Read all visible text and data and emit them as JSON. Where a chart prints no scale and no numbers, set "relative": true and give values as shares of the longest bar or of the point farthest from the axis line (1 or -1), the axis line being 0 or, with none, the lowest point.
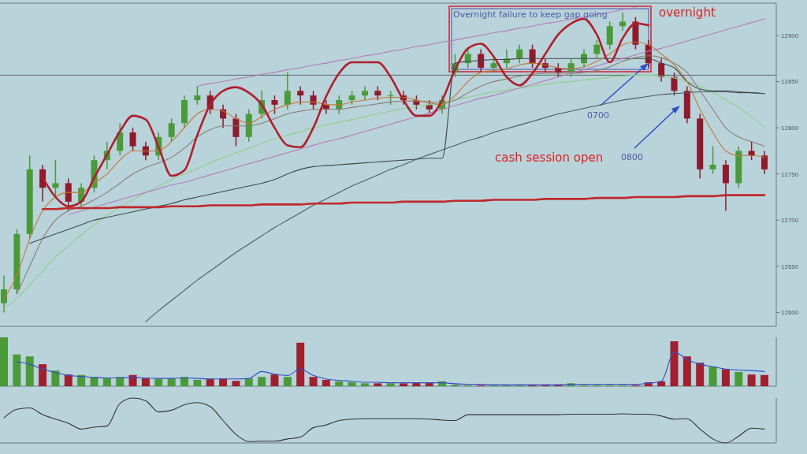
{
  "chart_data": [
    {
      "type": "candlestick",
      "categories": [
        null,
        null,
        null,
        null,
        null,
        null,
        null,
        null,
        null,
        null,
        null,
        null,
        null,
        null,
        null,
        null,
        null,
        null,
        null,
        null,
        null,
        null,
        null,
        null,
        null,
        null,
        null,
        null,
        null,
        null,
        null,
        null,
        null,
        null,
        null,
        null,
        null,
        null,
        null,
        null,
        null,
        null,
        null,
        null,
        null,
        null,
        null,
        null,
        null,
        null,
        null,
        null,
        null,
        null,
        null,
        null,
        null,
        null,
        null,
        null
      ],
      "ohlc": [
        [
          12610,
          12640,
          12600,
          12625
        ],
        [
          12625,
          12690,
          12620,
          12685
        ],
        [
          12685,
          12770,
          12680,
          12755
        ],
        [
          12755,
          12760,
          12720,
          12735
        ],
        [
          12735,
          12765,
          12725,
          12740
        ],
        [
          12740,
          12745,
          12710,
          12720
        ],
        [
          12720,
          12740,
          12715,
          12735
        ],
        [
          12735,
          12770,
          12730,
          12765
        ],
        [
          12765,
          12785,
          12755,
          12775
        ],
        [
          12775,
          12805,
          12770,
          12795
        ],
        [
          12795,
          12800,
          12775,
          12780
        ],
        [
          12780,
          12785,
          12765,
          12770
        ],
        [
          12770,
          12795,
          12765,
          12790
        ],
        [
          12790,
          12810,
          12785,
          12805
        ],
        [
          12805,
          12835,
          12800,
          12830
        ],
        [
          12830,
          12845,
          12825,
          12835
        ],
        [
          12835,
          12840,
          12815,
          12820
        ],
        [
          12820,
          12825,
          12800,
          12810
        ],
        [
          12810,
          12815,
          12780,
          12790
        ],
        [
          12790,
          12820,
          12785,
          12815
        ],
        [
          12815,
          12840,
          12810,
          12830
        ],
        [
          12830,
          12835,
          12815,
          12825
        ],
        [
          12825,
          12860,
          12820,
          12840
        ],
        [
          12840,
          12845,
          12825,
          12835
        ],
        [
          12835,
          12840,
          12820,
          12825
        ],
        [
          12825,
          12830,
          12815,
          12820
        ],
        [
          12820,
          12835,
          12815,
          12830
        ],
        [
          12830,
          12840,
          12825,
          12835
        ],
        [
          12835,
          12845,
          12830,
          12840
        ],
        [
          12840,
          12845,
          12830,
          12835
        ],
        [
          12835,
          12840,
          12825,
          12835
        ],
        [
          12835,
          12840,
          12825,
          12830
        ],
        [
          12830,
          12835,
          12820,
          12825
        ],
        [
          12825,
          12830,
          12815,
          12820
        ],
        [
          12820,
          12835,
          12815,
          12830
        ],
        [
          12860,
          12880,
          12855,
          12870
        ],
        [
          12870,
          12885,
          12865,
          12880
        ],
        [
          12880,
          12885,
          12860,
          12865
        ],
        [
          12865,
          12875,
          12860,
          12870
        ],
        [
          12870,
          12885,
          12865,
          12875
        ],
        [
          12875,
          12890,
          12870,
          12885
        ],
        [
          12885,
          12890,
          12865,
          12870
        ],
        [
          12870,
          12875,
          12860,
          12865
        ],
        [
          12865,
          12870,
          12855,
          12860
        ],
        [
          12860,
          12875,
          12855,
          12870
        ],
        [
          12870,
          12885,
          12865,
          12880
        ],
        [
          12880,
          12895,
          12875,
          12890
        ],
        [
          12890,
          12915,
          12885,
          12910
        ],
        [
          12910,
          12925,
          12905,
          12915
        ],
        [
          12915,
          12920,
          12885,
          12890
        ],
        [
          12890,
          12895,
          12865,
          12870
        ],
        [
          12870,
          12875,
          12850,
          12855
        ],
        [
          12855,
          12860,
          12835,
          12840
        ],
        [
          12840,
          12845,
          12805,
          12810
        ],
        [
          12810,
          12815,
          12745,
          12755
        ],
        [
          12755,
          12780,
          12750,
          12760
        ],
        [
          12760,
          12765,
          12710,
          12740
        ],
        [
          12740,
          12780,
          12735,
          12775
        ],
        [
          12775,
          12785,
          12765,
          12770
        ],
        [
          12770,
          12775,
          12750,
          12755
        ]
      ],
      "series": [
        {
          "type": "line",
          "color": "#8fcf8a",
          "values": [
            12605,
            12615,
            12630,
            12645,
            12660,
            12672,
            12684,
            12695,
            12705,
            12714,
            12722,
            12730,
            12737,
            12744,
            12750,
            12756,
            12762,
            12768,
            12773,
            12778,
            12783,
            12788,
            12792,
            12796,
            12800,
            12803,
            12806,
            12809,
            12812,
            12815,
            12818,
            12821,
            12823,
            12825,
            12827,
            12830,
            12833,
            12836,
            12839,
            12841,
            12843,
            12845,
            12847,
            12849,
            12850,
            12852,
            12853,
            12855,
            12856,
            12857,
            12857,
            12856,
            12854,
            12850,
            12845,
            12838,
            12830,
            12822,
            12812,
            12800
          ]
        },
        {
          "type": "line",
          "color": "#4d5c60",
          "values": [
            null,
            null,
            null,
            null,
            null,
            null,
            null,
            null,
            null,
            null,
            null,
            12590,
            12602,
            12613,
            12624,
            12635,
            12645,
            12655,
            12665,
            12674,
            12683,
            12692,
            12700,
            12708,
            12716,
            12723,
            12730,
            12737,
            12743,
            12749,
            12755,
            12760,
            12766,
            12771,
            12776,
            12781,
            12786,
            12790,
            12795,
            12799,
            12803,
            12807,
            12811,
            12815,
            12818,
            12821,
            12824,
            12827,
            12830,
            12832,
            12834,
            12836,
            12837,
            12838,
            12839,
            12839,
            12839,
            12838,
            12838,
            12837
          ]
        },
        {
          "type": "line",
          "color": "#3f4a4c",
          "values": [
            null,
            null,
            12675,
            12680,
            12685,
            12690,
            12695,
            12700,
            12703,
            12706,
            12709,
            12712,
            12715,
            12718,
            12722,
            12725,
            12728,
            12731,
            12734,
            12737,
            12740,
            12744,
            12750,
            12755,
            12758,
            12759,
            12760,
            12761,
            12762,
            12763,
            12764,
            12765,
            12766,
            12767,
            12767,
            12870,
            12872,
            12873,
            12874,
            12874,
            12875,
            12875,
            12875,
            12875,
            12875,
            12875,
            12875,
            12875,
            12875,
            12875,
            12875,
            12870,
            12865,
            12850,
            12842,
            12840,
            12840,
            12839,
            12838,
            12837
          ]
        },
        {
          "type": "line",
          "color": "#8a7b70",
          "values": [
            null,
            12620,
            12650,
            12680,
            12700,
            12710,
            12715,
            12722,
            12730,
            12740,
            12750,
            12757,
            12762,
            12768,
            12778,
            12790,
            12798,
            12802,
            12802,
            12802,
            12805,
            12810,
            12815,
            12818,
            12820,
            12820,
            12820,
            12822,
            12824,
            12826,
            12828,
            12829,
            12829,
            12828,
            12827,
            12830,
            12838,
            12845,
            12850,
            12853,
            12856,
            12858,
            12859,
            12859,
            12859,
            12860,
            12862,
            12866,
            12872,
            12876,
            12878,
            12876,
            12870,
            12860,
            12840,
            12820,
            12800,
            12790,
            12785,
            12780
          ]
        },
        {
          "type": "line",
          "color": "#c07a3a",
          "values": [
            12615,
            12640,
            12680,
            12710,
            12725,
            12730,
            12730,
            12740,
            12750,
            12765,
            12775,
            12775,
            12775,
            12785,
            12800,
            12815,
            12820,
            12818,
            12810,
            12805,
            12812,
            12820,
            12825,
            12828,
            12828,
            12825,
            12825,
            12828,
            12830,
            12832,
            12833,
            12833,
            12830,
            12827,
            12825,
            12835,
            12850,
            12860,
            12862,
            12864,
            12868,
            12870,
            12868,
            12865,
            12864,
            12866,
            12872,
            12880,
            12890,
            12893,
            12890,
            12880,
            12868,
            12850,
            12820,
            12795,
            12775,
            12770,
            12770,
            12768
          ]
        },
        {
          "type": "line",
          "color": "#b47cbc",
          "values": [
            null,
            null,
            null,
            null,
            null,
            null,
            null,
            null,
            null,
            null,
            null,
            null,
            null,
            null,
            null,
            12845,
            12848,
            12850,
            12853,
            12855,
            12858,
            12860,
            12863,
            12865,
            12868,
            12870,
            12873,
            12875,
            12878,
            12880,
            12883,
            12885,
            12888,
            12890,
            12893,
            12895,
            12898,
            12900,
            12903,
            12905,
            12908,
            12910,
            12913,
            12915,
            12918,
            12920,
            12923,
            12925,
            12928,
            12930,
            null,
            null,
            null,
            null,
            null,
            null,
            null,
            null,
            null,
            null
          ]
        },
        {
          "type": "line",
          "color": "#b47cbc",
          "values": [
            null,
            null,
            null,
            null,
            null,
            12706,
            12710,
            12714,
            12718,
            12722,
            12726,
            12730,
            12734,
            12738,
            12741,
            12745,
            12749,
            12753,
            12757,
            12761,
            12765,
            12769,
            12773,
            12777,
            12781,
            12785,
            12788,
            12792,
            12796,
            12800,
            12804,
            12808,
            12812,
            12816,
            12820,
            12824,
            12828,
            12832,
            12835,
            12839,
            12843,
            12847,
            12851,
            12855,
            12859,
            12863,
            12867,
            12871,
            12875,
            12879,
            12883,
            12886,
            12890,
            12894,
            12898,
            12902,
            12906,
            12910,
            12914,
            12918
          ]
        },
        {
          "type": "line",
          "color": "#c0282c",
          "values": [
            null,
            null,
            null,
            12712,
            12712,
            12713,
            12713,
            12713,
            12713,
            12714,
            12714,
            12714,
            12714,
            12715,
            12715,
            12715,
            12716,
            12716,
            12716,
            12716,
            12717,
            12717,
            12717,
            12717,
            12718,
            12718,
            12718,
            12719,
            12719,
            12719,
            12719,
            12720,
            12720,
            12720,
            12720,
            12721,
            12721,
            12721,
            12722,
            12722,
            12722,
            12722,
            12723,
            12723,
            12723,
            12723,
            12724,
            12724,
            12724,
            12725,
            12725,
            12725,
            12725,
            12726,
            12726,
            12726,
            12727,
            12727,
            12727,
            12727
          ]
        },
        {
          "type": "line",
          "color": "#b01e2e",
          "values": [
            null,
            null,
            null,
            12746,
            12725,
            12715,
            12720,
            12746,
            12771,
            12796,
            12813,
            12809,
            12779,
            12748,
            12754,
            12792,
            12825,
            12840,
            12844,
            12838,
            12825,
            12800,
            12781,
            12779,
            12800,
            12834,
            12859,
            12871,
            12871,
            12871,
            12855,
            12830,
            12813,
            12813,
            12830,
            12863,
            12886,
            12891,
            12877,
            12855,
            12846,
            12859,
            12880,
            12901,
            12913,
            12918,
            12901,
            12871,
            12897,
            12913,
            12911,
            null,
            null,
            null,
            null,
            null,
            null,
            null,
            null,
            null
          ]
        }
      ],
      "ylim": [
        12585,
        12935
      ],
      "yticks": [
        12600,
        12650,
        12700,
        12750,
        12800,
        12850,
        12900
      ],
      "tick_labels": "y",
      "ref_lines": [
        {
          "axis": "y",
          "value": 12857,
          "color": "#5a6a70"
        }
      ],
      "annotations": [
        "Overnight failure to keep gap going",
        "overnight",
        "0700",
        "cash session open",
        "0800"
      ]
    },
    {
      "type": "bar",
      "relative": true,
      "categories": [
        null,
        null,
        null,
        null,
        null,
        null,
        null,
        null,
        null,
        null,
        null,
        null,
        null,
        null,
        null,
        null,
        null,
        null,
        null,
        null,
        null,
        null,
        null,
        null,
        null,
        null,
        null,
        null,
        null,
        null,
        null,
        null,
        null,
        null,
        null,
        null,
        null,
        null,
        null,
        null,
        null,
        null,
        null,
        null,
        null,
        null,
        null,
        null,
        null,
        null,
        null,
        null,
        null,
        null,
        null,
        null,
        null,
        null,
        null,
        null
      ],
      "values": [
        1,
        0.65,
        0.61,
        0.45,
        0.32,
        0.24,
        0.23,
        0.19,
        0.16,
        0.19,
        0.23,
        0.16,
        0.15,
        0.16,
        0.19,
        0.13,
        0.15,
        0.16,
        0.11,
        0.16,
        0.19,
        0.24,
        0.19,
        0.89,
        0.19,
        0.13,
        0.1,
        0.08,
        0.06,
        0.06,
        0.06,
        0.06,
        0.08,
        0.08,
        0.1,
        0.03,
        0.02,
        0.02,
        0.02,
        0.02,
        0.02,
        0.02,
        0.02,
        0.03,
        0.06,
        0.02,
        0.02,
        0.02,
        0.02,
        0.02,
        0.08,
        0.1,
        0.92,
        0.61,
        0.48,
        0.4,
        0.35,
        0.29,
        0.24,
        0.23
      ],
      "colors": [
        "#4a9a3a",
        "#4a9a3a",
        "#4a9a3a",
        "#a02030",
        "#4a9a3a",
        "#a02030",
        "#4a9a3a",
        "#4a9a3a",
        "#4a9a3a",
        "#4a9a3a",
        "#a02030",
        "#a02030",
        "#4a9a3a",
        "#4a9a3a",
        "#4a9a3a",
        "#4a9a3a",
        "#a02030",
        "#a02030",
        "#a02030",
        "#4a9a3a",
        "#4a9a3a",
        "#a02030",
        "#4a9a3a",
        "#a02030",
        "#a02030",
        "#a02030",
        "#4a9a3a",
        "#4a9a3a",
        "#4a9a3a",
        "#a02030",
        "#4a9a3a",
        "#a02030",
        "#a02030",
        "#a02030",
        "#4a9a3a",
        "#4a9a3a",
        "#4a9a3a",
        "#a02030",
        "#4a9a3a",
        "#4a9a3a",
        "#4a9a3a",
        "#a02030",
        "#a02030",
        "#a02030",
        "#4a9a3a",
        "#4a9a3a",
        "#4a9a3a",
        "#4a9a3a",
        "#4a9a3a",
        "#a02030",
        "#a02030",
        "#a02030",
        "#a02030",
        "#a02030",
        "#a02030",
        "#4a9a3a",
        "#a02030",
        "#4a9a3a",
        "#a02030",
        "#a02030"
      ],
      "series": [
        {
          "type": "line",
          "color": "#3050c8",
          "values": [
            null,
            0.5,
            0.45,
            0.35,
            0.28,
            0.22,
            0.2,
            0.18,
            0.17,
            0.17,
            0.18,
            0.17,
            0.16,
            0.16,
            0.17,
            0.16,
            0.15,
            0.15,
            0.15,
            0.16,
            0.3,
            0.25,
            0.22,
            0.35,
            0.22,
            0.15,
            0.12,
            0.1,
            0.08,
            0.08,
            0.07,
            0.07,
            0.07,
            0.07,
            0.07,
            0.05,
            0.04,
            0.04,
            0.03,
            0.03,
            0.03,
            0.03,
            0.03,
            0.03,
            0.04,
            0.04,
            0.04,
            0.04,
            0.04,
            0.04,
            0.06,
            0.1,
            0.7,
            0.55,
            0.45,
            0.4,
            0.35,
            0.33,
            0.32,
            0.3
          ]
        }
      ]
    },
    {
      "type": "line",
      "relative": true,
      "categories": [
        null,
        null,
        null,
        null,
        null,
        null,
        null,
        null,
        null,
        null,
        null,
        null,
        null,
        null,
        null,
        null,
        null,
        null,
        null,
        null,
        null,
        null,
        null,
        null,
        null,
        null,
        null,
        null,
        null,
        null,
        null,
        null,
        null,
        null,
        null,
        null,
        null,
        null,
        null,
        null,
        null,
        null,
        null,
        null,
        null,
        null,
        null,
        null,
        null,
        null,
        null,
        null,
        null,
        null,
        null,
        null,
        null,
        null,
        null,
        null
      ],
      "series": [
        {
          "color": "#3a3030",
          "values": [
            0.56,
            0.75,
            0.78,
            0.63,
            0.53,
            0.44,
            0.31,
            0.35,
            0.38,
            0.88,
            1,
            0.94,
            0.69,
            0.73,
            0.85,
            0.9,
            0.81,
            0.5,
            0.19,
            0.03,
            0.04,
            0.04,
            0.09,
            0.13,
            0.34,
            0.4,
            0.5,
            0.53,
            0.54,
            0.54,
            0.54,
            0.54,
            0.54,
            0.53,
            0.51,
            0.5,
            0.63,
            0.63,
            0.63,
            0.63,
            0.63,
            0.63,
            0.63,
            0.63,
            0.64,
            0.64,
            0.64,
            0.64,
            0.65,
            0.64,
            0.64,
            0.6,
            0.53,
            0.54,
            0.31,
            0.09,
            0,
            0.15,
            0.33,
            0.31
          ]
        }
      ]
    }
  ]
}
